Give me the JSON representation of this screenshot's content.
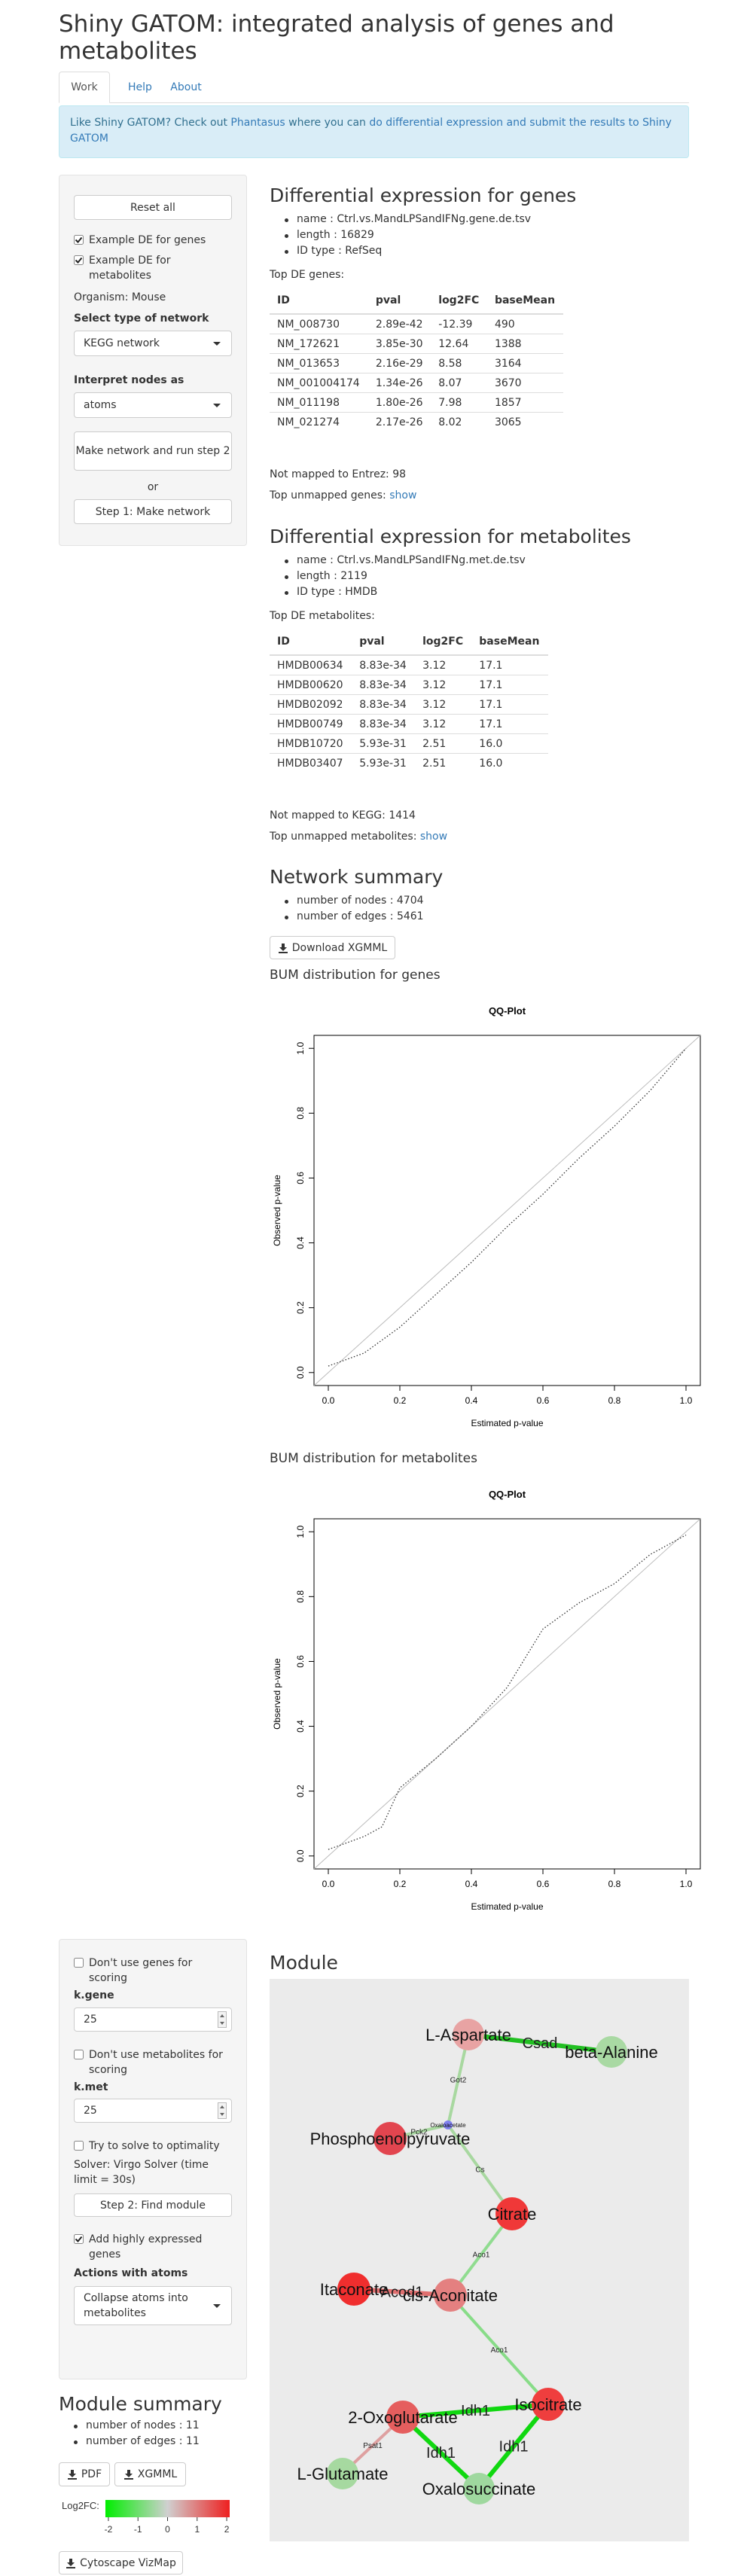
{
  "header": {
    "title": "Shiny GATOM: integrated analysis of genes and metabolites"
  },
  "tabs": [
    "Work",
    "Help",
    "About"
  ],
  "alert": {
    "text1": "Like Shiny GATOM? Check out ",
    "link1": "Phantasus",
    "text2": " where you can ",
    "link2": "do differential expression and submit the results to Shiny GATOM"
  },
  "sidebar": {
    "reset": "Reset all",
    "checkboxes": [
      {
        "label": "Example DE for genes",
        "checked": true
      },
      {
        "label": "Example DE for metabolites",
        "checked": true
      }
    ],
    "organism": "Organism: Mouse",
    "network_label": "Select type of network",
    "network_value": "KEGG network",
    "nodes_label": "Interpret nodes as",
    "nodes_value": "atoms",
    "run_button": "Make network and run step 2",
    "or": "or",
    "step1_button": "Step 1: Make network"
  },
  "genes": {
    "heading": "Differential expression for genes",
    "info": [
      "name : Ctrl.vs.MandLPSandIFNg.gene.de.tsv",
      "length : 16829",
      "ID type : RefSeq"
    ],
    "table_caption": "Top DE genes:",
    "table": {
      "columns": [
        "ID",
        "pval",
        "log2FC",
        "baseMean"
      ],
      "rows": [
        [
          "NM_008730",
          "2.89e-42",
          "-12.39",
          "490"
        ],
        [
          "NM_172621",
          "3.85e-30",
          "12.64",
          "1388"
        ],
        [
          "NM_013653",
          "2.16e-29",
          "8.58",
          "3164"
        ],
        [
          "NM_001004174",
          "1.34e-26",
          "8.07",
          "3670"
        ],
        [
          "NM_011198",
          "1.80e-26",
          "7.98",
          "1857"
        ],
        [
          "NM_021274",
          "2.17e-26",
          "8.02",
          "3065"
        ]
      ]
    },
    "not_mapped": "Not mapped to Entrez: 98",
    "unmapped_label": "Top unmapped genes: ",
    "unmapped_link": "show"
  },
  "metabolites": {
    "heading": "Differential expression for metabolites",
    "info": [
      "name : Ctrl.vs.MandLPSandIFNg.met.de.tsv",
      "length : 2119",
      "ID type : HMDB"
    ],
    "table_caption": "Top DE metabolites:",
    "table": {
      "columns": [
        "ID",
        "pval",
        "log2FC",
        "baseMean"
      ],
      "rows": [
        [
          "HMDB00634",
          "8.83e-34",
          "3.12",
          "17.1"
        ],
        [
          "HMDB00620",
          "8.83e-34",
          "3.12",
          "17.1"
        ],
        [
          "HMDB02092",
          "8.83e-34",
          "3.12",
          "17.1"
        ],
        [
          "HMDB00749",
          "8.83e-34",
          "3.12",
          "17.1"
        ],
        [
          "HMDB10720",
          "5.93e-31",
          "2.51",
          "16.0"
        ],
        [
          "HMDB03407",
          "5.93e-31",
          "2.51",
          "16.0"
        ]
      ]
    },
    "not_mapped": "Not mapped to KEGG: 1414",
    "unmapped_label": "Top unmapped metabolites: ",
    "unmapped_link": "show"
  },
  "network_summary": {
    "heading": "Network summary",
    "items": [
      "number of nodes : 4704",
      "number of edges : 5461"
    ],
    "download": "Download XGMML"
  },
  "bum_headings": [
    "BUM distribution for genes",
    "BUM distribution for metabolites"
  ],
  "chart_data": [
    {
      "type": "line",
      "title": "QQ-Plot",
      "x_label": "Estimated p-value",
      "y_label": "Observed p-value",
      "x": [
        0,
        0.1,
        0.2,
        0.3,
        0.4,
        0.5,
        0.6,
        0.7,
        0.8,
        0.9,
        1.0
      ],
      "values": [
        0.02,
        0.06,
        0.14,
        0.24,
        0.34,
        0.45,
        0.55,
        0.66,
        0.76,
        0.87,
        1.0
      ],
      "color": "#333333",
      "xlim": [
        -0.04,
        1.04
      ],
      "ylim": [
        -0.04,
        1.04
      ],
      "xticks": [
        {
          "value": 0,
          "label": "0.0"
        },
        {
          "value": 0.2,
          "label": "0.2"
        },
        {
          "value": 0.4,
          "label": "0.4"
        },
        {
          "value": 0.6,
          "label": "0.6"
        },
        {
          "value": 0.8,
          "label": "0.8"
        },
        {
          "value": 1,
          "label": "1.0"
        }
      ],
      "yticks": [
        {
          "value": 0,
          "label": "0.0"
        },
        {
          "value": 0.2,
          "label": "0.2"
        },
        {
          "value": 0.4,
          "label": "0.4"
        },
        {
          "value": 0.6,
          "label": "0.6"
        },
        {
          "value": 0.8,
          "label": "0.8"
        },
        {
          "value": 1,
          "label": "1.0"
        }
      ]
    },
    {
      "type": "line",
      "title": "QQ-Plot",
      "x_label": "Estimated p-value",
      "y_label": "Observed p-value",
      "x": [
        0,
        0.1,
        0.15,
        0.2,
        0.3,
        0.4,
        0.5,
        0.6,
        0.7,
        0.8,
        0.9,
        1.0
      ],
      "values": [
        0.02,
        0.06,
        0.09,
        0.21,
        0.3,
        0.4,
        0.52,
        0.7,
        0.78,
        0.84,
        0.93,
        0.99
      ],
      "color": "#333333",
      "xlim": [
        -0.04,
        1.04
      ],
      "ylim": [
        -0.04,
        1.04
      ],
      "xticks": [
        {
          "value": 0,
          "label": "0.0"
        },
        {
          "value": 0.2,
          "label": "0.2"
        },
        {
          "value": 0.4,
          "label": "0.4"
        },
        {
          "value": 0.6,
          "label": "0.6"
        },
        {
          "value": 0.8,
          "label": "0.8"
        },
        {
          "value": 1,
          "label": "1.0"
        }
      ],
      "yticks": [
        {
          "value": 0,
          "label": "0.0"
        },
        {
          "value": 0.2,
          "label": "0.2"
        },
        {
          "value": 0.4,
          "label": "0.4"
        },
        {
          "value": 0.6,
          "label": "0.6"
        },
        {
          "value": 0.8,
          "label": "0.8"
        },
        {
          "value": 1,
          "label": "1.0"
        }
      ]
    }
  ],
  "module_sidebar": {
    "no_genes": {
      "label": "Don't use genes for scoring",
      "checked": false
    },
    "kgene_label": "k.gene",
    "kgene_value": "25",
    "no_mets": {
      "label": "Don't use metabolites for scoring",
      "checked": false
    },
    "kmet_label": "k.met",
    "kmet_value": "25",
    "optimality": {
      "label": "Try to solve to optimality",
      "checked": false
    },
    "solver": "Solver: Virgo Solver (time limit = 30s)",
    "step2": "Step 2: Find module",
    "add_genes": {
      "label": "Add highly expressed genes",
      "checked": true
    },
    "actions_label": "Actions with atoms",
    "actions_value": "Collapse atoms into metabolites"
  },
  "module": {
    "heading": "Module",
    "nodes": [
      {
        "label": "L-Aspartate",
        "color": "#e8a3a3"
      },
      {
        "label": "beta-Alanine",
        "color": "#a9d9a3"
      },
      {
        "label": "Oxaloacetate",
        "color": "#8080ee"
      },
      {
        "label": "Phosphoenolpyruvate",
        "color": "#e2454f"
      },
      {
        "label": "Citrate",
        "color": "#f03838"
      },
      {
        "label": "Itaconate",
        "color": "#f02e2e"
      },
      {
        "label": "cis-Aconitate",
        "color": "#e48080"
      },
      {
        "label": "Isocitrate",
        "color": "#ef3e3e"
      },
      {
        "label": "2-Oxoglutarate",
        "color": "#e55e5e"
      },
      {
        "label": "L-Glutamate",
        "color": "#a6d9a0"
      },
      {
        "label": "Oxalosuccinate",
        "color": "#9fd89f"
      }
    ],
    "edges": [
      {
        "source": 0,
        "target": 2,
        "label": "Got2",
        "color": "#a8d8a0"
      },
      {
        "source": 0,
        "target": 1,
        "label": "Csad",
        "color": "#22c022"
      },
      {
        "source": 3,
        "target": 2,
        "label": "Pck2",
        "color": "#a8d8a0"
      },
      {
        "source": 2,
        "target": 4,
        "label": "Cs",
        "color": "#a8d8a0"
      },
      {
        "source": 4,
        "target": 6,
        "label": "Aco1",
        "color": "#90dc90"
      },
      {
        "source": 5,
        "target": 6,
        "label": "Acod1",
        "color": "#e07070"
      },
      {
        "source": 6,
        "target": 7,
        "label": "Aco1",
        "color": "#88dc88"
      },
      {
        "source": 7,
        "target": 8,
        "label": "Idh1",
        "color": "#10d810"
      },
      {
        "source": 8,
        "target": 10,
        "label": "Idh1",
        "color": "#10d810"
      },
      {
        "source": 7,
        "target": 10,
        "label": "Idh1",
        "color": "#10d810"
      },
      {
        "source": 8,
        "target": 9,
        "label": "Psat1",
        "color": "#dea0a0"
      }
    ]
  },
  "module_summary": {
    "heading": "Module summary",
    "items": [
      "number of nodes : 11",
      "number of edges : 11"
    ],
    "pdf": "PDF",
    "xgmml": "XGMML",
    "legend": {
      "label": "Log2FC:",
      "lim": [
        -2.1,
        2.1
      ],
      "ticks": [
        -2,
        -1,
        0,
        1,
        2
      ],
      "colors": [
        "#00ee00",
        "#d0d0d0",
        "#ee2020"
      ]
    },
    "vizmap": "Cytoscape VizMap"
  }
}
